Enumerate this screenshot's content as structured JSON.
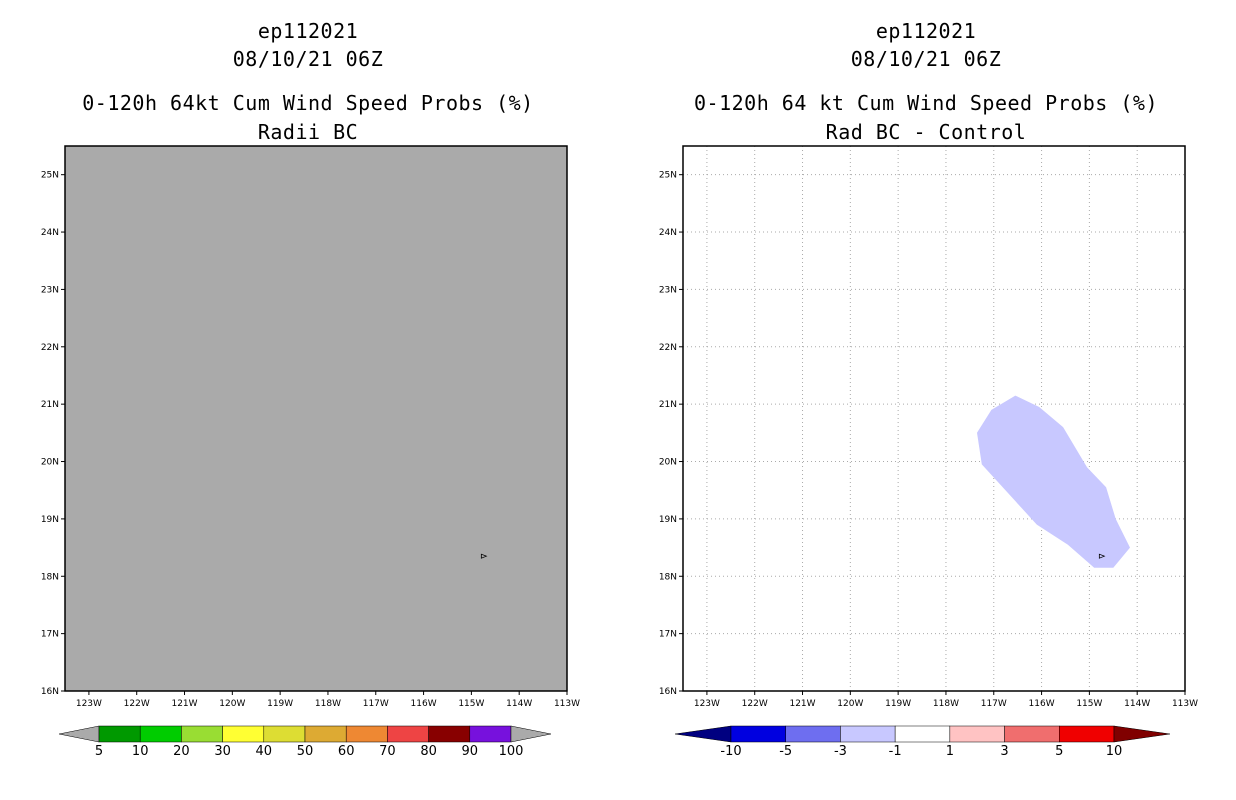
{
  "chart_data": [
    {
      "type": "heatmap",
      "storm_id": "ep112021",
      "datetime": "08/10/21 06Z",
      "title": "0-120h 64kt Cum Wind Speed Probs (%)",
      "subtitle": "Radii BC",
      "xlim": [
        -123.5,
        -113
      ],
      "ylim": [
        16,
        25.5
      ],
      "x_ticks": [
        -123,
        -122,
        -121,
        -120,
        -119,
        -118,
        -117,
        -116,
        -115,
        -114,
        -113
      ],
      "x_tick_labels": [
        "123W",
        "122W",
        "121W",
        "120W",
        "119W",
        "118W",
        "117W",
        "116W",
        "115W",
        "114W",
        "113W"
      ],
      "y_ticks": [
        16,
        17,
        18,
        19,
        20,
        21,
        22,
        23,
        24,
        25
      ],
      "y_tick_labels": [
        "16N",
        "17N",
        "18N",
        "19N",
        "20N",
        "21N",
        "22N",
        "23N",
        "24N",
        "25N"
      ],
      "grid": false,
      "fill_color": "#aaaaaa",
      "storm_marker": {
        "lon": -114.75,
        "lat": 18.35
      },
      "colorbar": {
        "labels": [
          "5",
          "10",
          "20",
          "30",
          "40",
          "50",
          "60",
          "70",
          "80",
          "90",
          "100"
        ],
        "colors": [
          "#009900",
          "#00cc00",
          "#99dd33",
          "#ffff33",
          "#dddd33",
          "#ddaa33",
          "#ee8833",
          "#ee4444",
          "#880000",
          "#7711dd"
        ],
        "under_color": "#aaaaaa",
        "over_color": "#aaaaaa"
      }
    },
    {
      "type": "heatmap",
      "storm_id": "ep112021",
      "datetime": "08/10/21 06Z",
      "title": "0-120h 64 kt Cum Wind Speed Probs (%)",
      "subtitle": "Rad BC - Control",
      "xlim": [
        -123.5,
        -113
      ],
      "ylim": [
        16,
        25.5
      ],
      "x_ticks": [
        -123,
        -122,
        -121,
        -120,
        -119,
        -118,
        -117,
        -116,
        -115,
        -114,
        -113
      ],
      "x_tick_labels": [
        "123W",
        "122W",
        "121W",
        "120W",
        "119W",
        "118W",
        "117W",
        "116W",
        "115W",
        "114W",
        "113W"
      ],
      "y_ticks": [
        16,
        17,
        18,
        19,
        20,
        21,
        22,
        23,
        24,
        25
      ],
      "y_tick_labels": [
        "16N",
        "17N",
        "18N",
        "19N",
        "20N",
        "21N",
        "22N",
        "23N",
        "24N",
        "25N"
      ],
      "grid": true,
      "fill_color": "#ffffff",
      "storm_marker": {
        "lon": -114.75,
        "lat": 18.35
      },
      "contour_region": {
        "value_range": [
          -3,
          -1
        ],
        "color": "#c8c8ff",
        "polygon_lonlat": [
          [
            -117.35,
            20.5
          ],
          [
            -117.05,
            20.9
          ],
          [
            -116.55,
            21.15
          ],
          [
            -116.05,
            20.95
          ],
          [
            -115.55,
            20.6
          ],
          [
            -115.05,
            19.9
          ],
          [
            -114.65,
            19.55
          ],
          [
            -114.45,
            19.0
          ],
          [
            -114.15,
            18.5
          ],
          [
            -114.5,
            18.15
          ],
          [
            -114.9,
            18.15
          ],
          [
            -115.45,
            18.55
          ],
          [
            -116.1,
            18.9
          ],
          [
            -117.25,
            19.95
          ]
        ]
      },
      "colorbar": {
        "labels": [
          "-10",
          "-5",
          "-3",
          "-1",
          "1",
          "3",
          "5",
          "10"
        ],
        "colors": [
          "#0000e0",
          "#6e6ef0",
          "#c8c8ff",
          "#ffffff",
          "#ffc3c3",
          "#f06e6e",
          "#f00000"
        ],
        "under_color": "#000080",
        "over_color": "#800000"
      }
    }
  ]
}
